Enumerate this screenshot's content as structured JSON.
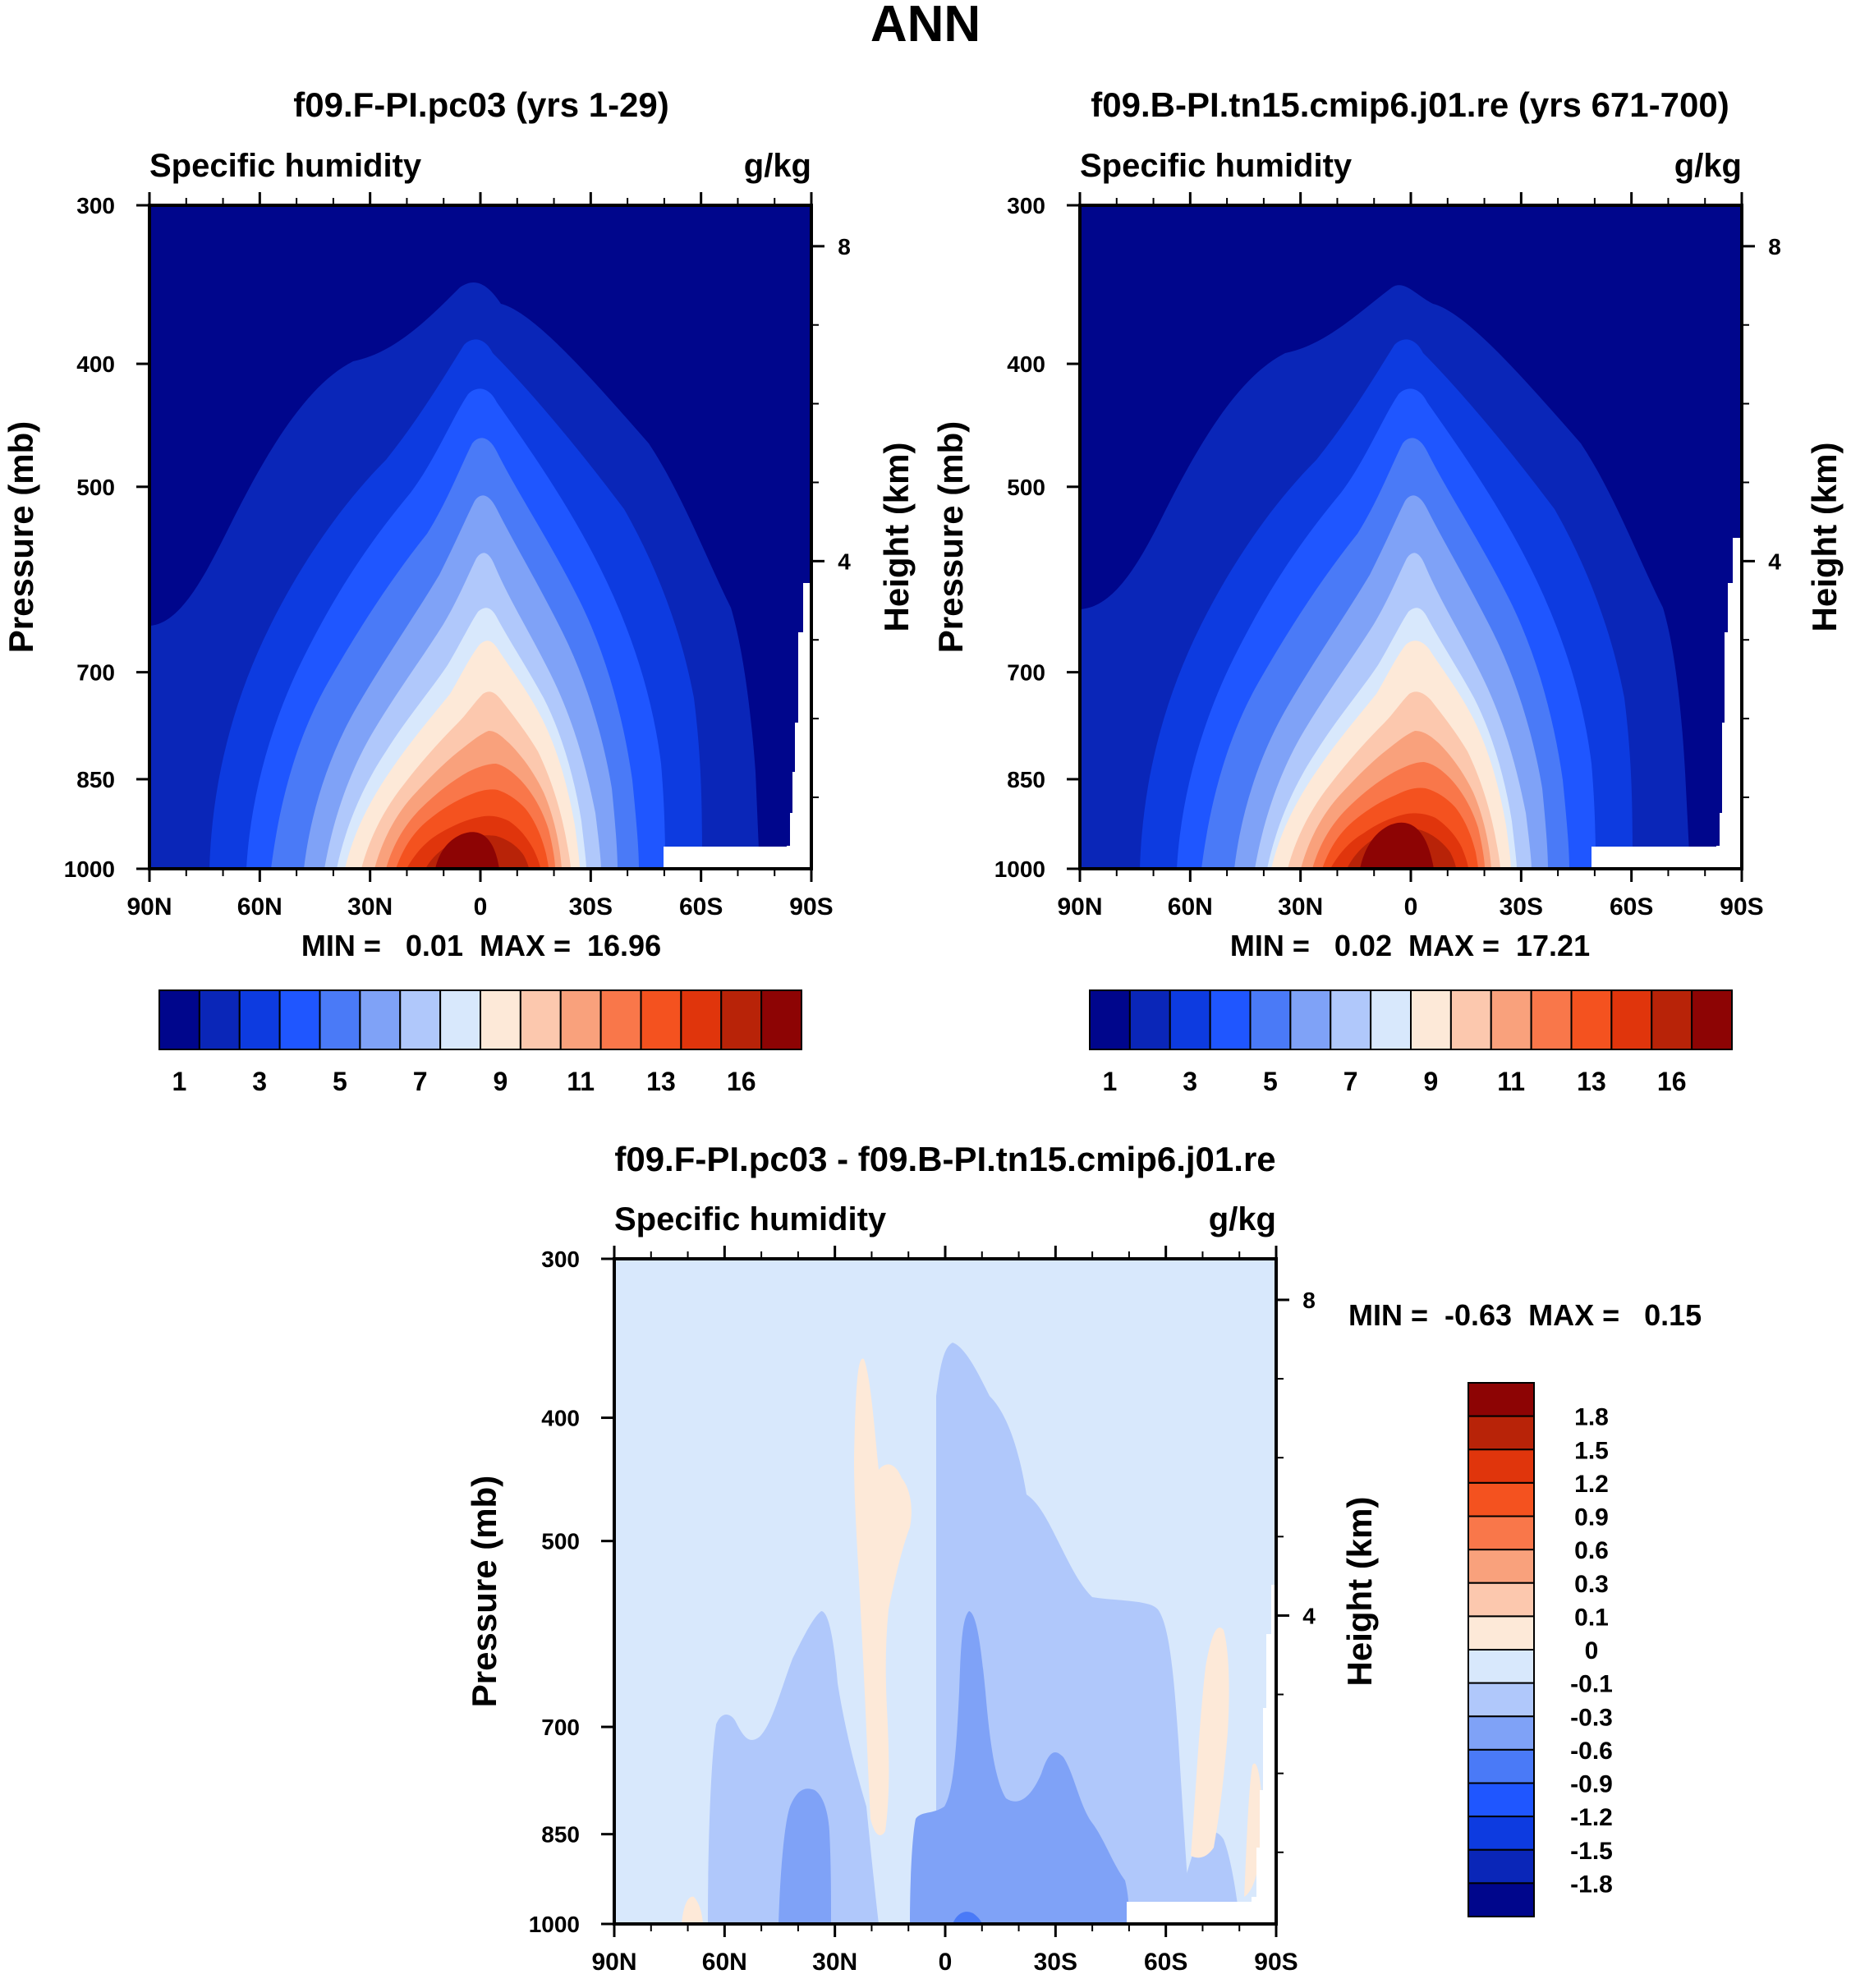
{
  "page_title": "ANN",
  "chart_data": [
    {
      "type": "contour",
      "title": "f09.F-PI.pc03 (yrs 1-29)",
      "variable": "Specific humidity",
      "units": "g/kg",
      "ylabel": "Pressure (mb)",
      "y2label": "Height (km)",
      "x_ticks": [
        "90N",
        "60N",
        "30N",
        "0",
        "30S",
        "60S",
        "90S"
      ],
      "xlim": [
        90,
        -90
      ],
      "y_ticks": [
        300,
        400,
        500,
        700,
        850,
        1000
      ],
      "ylim": [
        300,
        1000
      ],
      "height_ticks": [
        8,
        4
      ],
      "stats": "MIN =   0.01  MAX =  16.96",
      "colorbar": {
        "orientation": "horizontal",
        "labels": [
          "1",
          "3",
          "5",
          "7",
          "9",
          "11",
          "13",
          "16"
        ],
        "colors": [
          "#00068c",
          "#0a26b8",
          "#0d3be0",
          "#1f56ff",
          "#4a7af7",
          "#7fa2f7",
          "#b0c8fb",
          "#d8e8fc",
          "#fde9d8",
          "#fcc8ae",
          "#f9a17c",
          "#f9774a",
          "#f4521f",
          "#e0350c",
          "#b82308",
          "#8d0404"
        ]
      }
    },
    {
      "type": "contour",
      "title": "f09.B-PI.tn15.cmip6.j01.re (yrs 671-700)",
      "variable": "Specific humidity",
      "units": "g/kg",
      "ylabel": "Pressure (mb)",
      "y2label": "Height (km)",
      "x_ticks": [
        "90N",
        "60N",
        "30N",
        "0",
        "30S",
        "60S",
        "90S"
      ],
      "xlim": [
        90,
        -90
      ],
      "y_ticks": [
        300,
        400,
        500,
        700,
        850,
        1000
      ],
      "ylim": [
        300,
        1000
      ],
      "height_ticks": [
        8,
        4
      ],
      "stats": "MIN =   0.02  MAX =  17.21",
      "colorbar": {
        "orientation": "horizontal",
        "labels": [
          "1",
          "3",
          "5",
          "7",
          "9",
          "11",
          "13",
          "16"
        ],
        "colors": [
          "#00068c",
          "#0a26b8",
          "#0d3be0",
          "#1f56ff",
          "#4a7af7",
          "#7fa2f7",
          "#b0c8fb",
          "#d8e8fc",
          "#fde9d8",
          "#fcc8ae",
          "#f9a17c",
          "#f9774a",
          "#f4521f",
          "#e0350c",
          "#b82308",
          "#8d0404"
        ]
      }
    },
    {
      "type": "contour",
      "title": "f09.F-PI.pc03 - f09.B-PI.tn15.cmip6.j01.re",
      "variable": "Specific humidity",
      "units": "g/kg",
      "ylabel": "Pressure (mb)",
      "y2label": "Height (km)",
      "x_ticks": [
        "90N",
        "60N",
        "30N",
        "0",
        "30S",
        "60S",
        "90S"
      ],
      "xlim": [
        90,
        -90
      ],
      "y_ticks": [
        300,
        400,
        500,
        700,
        850,
        1000
      ],
      "ylim": [
        300,
        1000
      ],
      "height_ticks": [
        8,
        4
      ],
      "stats": "MIN =  -0.63  MAX =   0.15",
      "colorbar": {
        "orientation": "vertical",
        "labels": [
          "1.8",
          "1.5",
          "1.2",
          "0.9",
          "0.6",
          "0.3",
          "0.1",
          "0",
          "-0.1",
          "-0.3",
          "-0.6",
          "-0.9",
          "-1.2",
          "-1.5",
          "-1.8"
        ],
        "colors": [
          "#8d0404",
          "#b82308",
          "#e0350c",
          "#f4521f",
          "#f9774a",
          "#f9a17c",
          "#fcc8ae",
          "#fde9d8",
          "#d8e8fc",
          "#b0c8fb",
          "#7fa2f7",
          "#4a7af7",
          "#1f56ff",
          "#0d3be0",
          "#0a26b8",
          "#00068c"
        ]
      }
    }
  ]
}
